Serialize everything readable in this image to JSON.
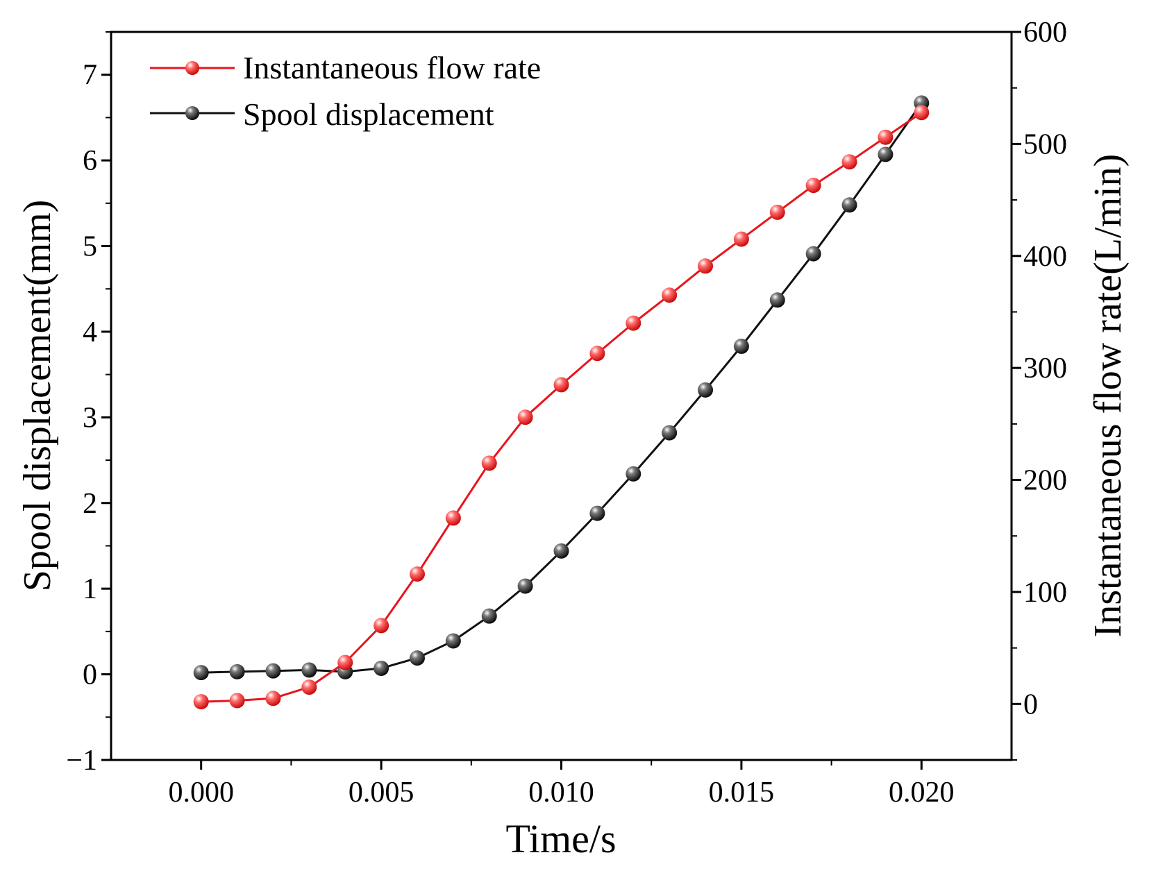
{
  "chart_data": {
    "type": "line",
    "xlabel": "Time/s",
    "ylabel": "Spool displacement(mm)",
    "y2label": "Instantaneous flow rate(L/min)",
    "xlim": [
      -0.0025,
      0.0225
    ],
    "ylim": [
      -1,
      7.5
    ],
    "y2lim": [
      -50,
      600
    ],
    "x_ticks": [
      0.0,
      0.005,
      0.01,
      0.015,
      0.02
    ],
    "x_tick_labels": [
      "0.000",
      "0.005",
      "0.010",
      "0.015",
      "0.020"
    ],
    "y_ticks": [
      -1,
      0,
      1,
      2,
      3,
      4,
      5,
      6,
      7
    ],
    "y_tick_labels": [
      "−1",
      "0",
      "1",
      "2",
      "3",
      "4",
      "5",
      "6",
      "7"
    ],
    "y2_ticks": [
      0,
      100,
      200,
      300,
      400,
      500,
      600
    ],
    "y2_tick_labels": [
      "0",
      "100",
      "200",
      "300",
      "400",
      "500",
      "600"
    ],
    "legend_position": "top-left",
    "series": [
      {
        "name": "Instantaneous flow rate",
        "axis": "right",
        "color": "#e8141c",
        "x": [
          0.0,
          0.001,
          0.002,
          0.003,
          0.004,
          0.005,
          0.006,
          0.007,
          0.008,
          0.009,
          0.01,
          0.011,
          0.012,
          0.013,
          0.014,
          0.015,
          0.016,
          0.017,
          0.018,
          0.019,
          0.02
        ],
        "values": [
          2,
          3,
          5,
          15,
          37,
          70,
          116,
          166,
          215,
          256,
          285,
          313,
          340,
          365,
          391,
          415,
          439,
          463,
          484,
          506,
          528
        ]
      },
      {
        "name": "Spool displacement",
        "axis": "left",
        "color": "#111111",
        "x": [
          0.0,
          0.001,
          0.002,
          0.003,
          0.004,
          0.005,
          0.006,
          0.007,
          0.008,
          0.009,
          0.01,
          0.011,
          0.012,
          0.013,
          0.014,
          0.015,
          0.016,
          0.017,
          0.018,
          0.019,
          0.02
        ],
        "values": [
          0.02,
          0.03,
          0.04,
          0.05,
          0.03,
          0.07,
          0.19,
          0.39,
          0.68,
          1.03,
          1.44,
          1.88,
          2.34,
          2.82,
          3.32,
          3.83,
          4.37,
          4.91,
          5.48,
          6.07,
          6.67
        ]
      }
    ]
  }
}
